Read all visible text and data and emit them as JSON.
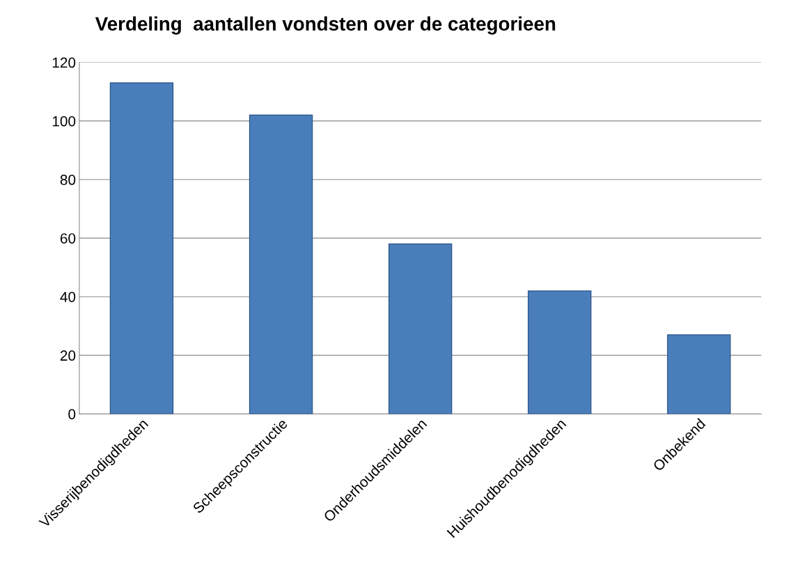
{
  "chart_data": {
    "type": "bar",
    "title": "Verdeling  aantallen vondsten over de categorieen",
    "categories": [
      "Visserijbenodigdheden",
      "Scheepsconstructie",
      "Onderhoudsmiddelen",
      "Huishoudbenodigdheden",
      "Onbekend"
    ],
    "values": [
      113,
      102,
      58,
      42,
      27
    ],
    "color": "#4a7ebb",
    "ylim": [
      0,
      120
    ],
    "yticks": [
      0,
      20,
      40,
      60,
      80,
      100,
      120
    ],
    "grid": "y"
  }
}
